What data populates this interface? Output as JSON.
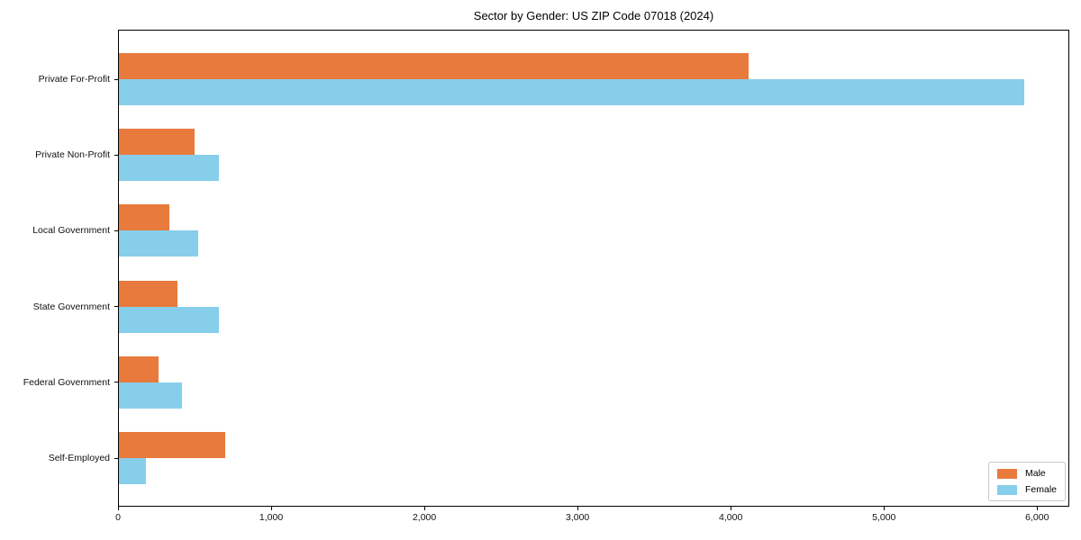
{
  "title": "Sector by Gender: US ZIP Code 07018 (2024)",
  "chart_data": {
    "type": "bar",
    "orientation": "horizontal",
    "title": "Sector by Gender: US ZIP Code 07018 (2024)",
    "categories": [
      "Private For-Profit",
      "Private Non-Profit",
      "Local Government",
      "State Government",
      "Federal Government",
      "Self-Employed"
    ],
    "series": [
      {
        "name": "Male",
        "color": "#e87a3d",
        "values": [
          4110,
          495,
          330,
          385,
          260,
          695
        ]
      },
      {
        "name": "Female",
        "color": "#87ceeb",
        "values": [
          5910,
          655,
          520,
          650,
          410,
          175
        ]
      }
    ],
    "xlim": [
      0,
      6210
    ],
    "xticks": [
      0,
      1000,
      2000,
      3000,
      4000,
      5000,
      6000
    ],
    "xtick_labels": [
      "0",
      "1,000",
      "2,000",
      "3,000",
      "4,000",
      "5,000",
      "6,000"
    ],
    "xlabel": "",
    "ylabel": "",
    "legend_position": "lower right",
    "grid": false,
    "background_color": "#ffffff",
    "axis_color": "#000000"
  }
}
